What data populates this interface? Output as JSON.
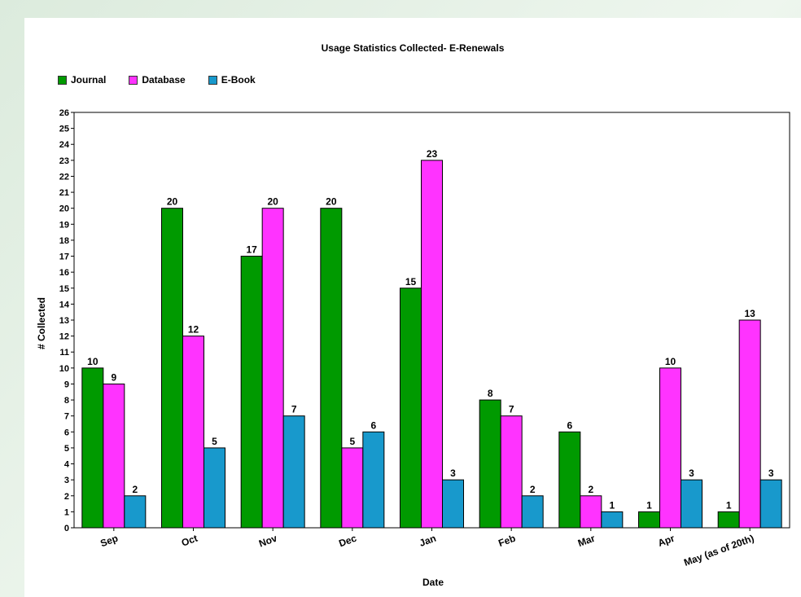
{
  "chart_data": {
    "type": "bar",
    "title": "Usage Statistics Collected- E-Renewals",
    "xlabel": "Date",
    "ylabel": "# Collected",
    "ylim": [
      0,
      26
    ],
    "grid": false,
    "legend_position": "top-left",
    "categories": [
      "Sep",
      "Oct",
      "Nov",
      "Dec",
      "Jan",
      "Feb",
      "Mar",
      "Apr",
      "May (as of 20th)"
    ],
    "series": [
      {
        "name": "Journal",
        "color": "#009a00",
        "values": [
          10,
          20,
          17,
          20,
          15,
          8,
          6,
          1,
          1
        ]
      },
      {
        "name": "Database",
        "color": "#ff33ff",
        "values": [
          9,
          12,
          20,
          5,
          23,
          7,
          2,
          10,
          13
        ]
      },
      {
        "name": "E-Book",
        "color": "#1899cc",
        "values": [
          2,
          5,
          7,
          6,
          3,
          2,
          1,
          3,
          3
        ]
      }
    ]
  }
}
